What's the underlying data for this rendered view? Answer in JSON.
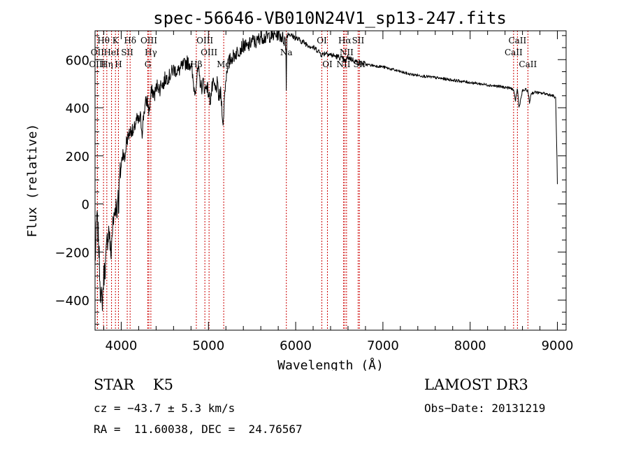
{
  "chart_data": {
    "type": "line",
    "title": "spec-56646-VB010N24V1_sp13-247.fits",
    "xlabel": "Wavelength (Å)",
    "ylabel": "Flux (relative)",
    "xlim": [
      3700,
      9100
    ],
    "ylim": [
      -525,
      720
    ],
    "xticks": [
      4000,
      5000,
      6000,
      7000,
      8000,
      9000
    ],
    "yticks": [
      -400,
      -200,
      0,
      200,
      400,
      600
    ],
    "line_color": "#000000",
    "marker_color": "#cc0000",
    "spectrum": {
      "x": [
        3700,
        3720,
        3740,
        3760,
        3780,
        3800,
        3820,
        3840,
        3860,
        3880,
        3900,
        3920,
        3940,
        3950,
        3960,
        3970,
        3980,
        4000,
        4020,
        4040,
        4060,
        4080,
        4100,
        4120,
        4140,
        4160,
        4180,
        4200,
        4220,
        4240,
        4260,
        4280,
        4300,
        4320,
        4340,
        4360,
        4380,
        4400,
        4420,
        4440,
        4460,
        4480,
        4500,
        4550,
        4600,
        4650,
        4700,
        4750,
        4800,
        4820,
        4840,
        4860,
        4880,
        4900,
        4920,
        4940,
        4960,
        4980,
        5000,
        5020,
        5040,
        5060,
        5080,
        5100,
        5120,
        5140,
        5160,
        5170,
        5175,
        5180,
        5190,
        5200,
        5220,
        5250,
        5300,
        5350,
        5400,
        5450,
        5500,
        5550,
        5600,
        5650,
        5700,
        5750,
        5800,
        5850,
        5880,
        5890,
        5893,
        5896,
        5900,
        5920,
        5950,
        6000,
        6050,
        6100,
        6150,
        6200,
        6250,
        6300,
        6350,
        6400,
        6450,
        6500,
        6550,
        6563,
        6580,
        6600,
        6650,
        6700,
        6750,
        6800,
        6900,
        7000,
        7100,
        7200,
        7300,
        7400,
        7500,
        7600,
        7700,
        7800,
        7900,
        8000,
        8100,
        8200,
        8300,
        8400,
        8480,
        8498,
        8520,
        8542,
        8560,
        8600,
        8640,
        8662,
        8680,
        8700,
        8750,
        8800,
        8850,
        8900,
        8950,
        8980,
        8995,
        9000
      ],
      "y": [
        -250,
        -50,
        -150,
        -350,
        -420,
        -300,
        -250,
        -150,
        -100,
        -220,
        -100,
        -50,
        10,
        -60,
        60,
        -20,
        100,
        160,
        220,
        180,
        260,
        280,
        300,
        310,
        290,
        330,
        350,
        340,
        360,
        300,
        380,
        420,
        430,
        380,
        460,
        470,
        450,
        480,
        500,
        470,
        510,
        490,
        520,
        530,
        560,
        550,
        570,
        590,
        580,
        520,
        470,
        500,
        560,
        520,
        480,
        510,
        470,
        500,
        460,
        430,
        480,
        500,
        470,
        500,
        440,
        460,
        380,
        300,
        380,
        420,
        480,
        520,
        580,
        600,
        620,
        640,
        660,
        650,
        680,
        670,
        700,
        690,
        700,
        700,
        710,
        690,
        680,
        620,
        440,
        620,
        700,
        710,
        700,
        690,
        680,
        670,
        660,
        650,
        640,
        620,
        630,
        620,
        615,
        610,
        600,
        590,
        600,
        610,
        600,
        590,
        585,
        580,
        575,
        570,
        560,
        550,
        540,
        535,
        530,
        525,
        520,
        515,
        510,
        505,
        500,
        495,
        490,
        485,
        480,
        470,
        430,
        480,
        400,
        470,
        475,
        470,
        420,
        460,
        465,
        460,
        460,
        455,
        450,
        440,
        200,
        80
      ]
    },
    "lines": [
      {
        "label": "Hθ",
        "wave": 3797,
        "row": 0
      },
      {
        "label": "OII",
        "wave": 3727,
        "row": 1
      },
      {
        "label": "OIII",
        "wave": 3727,
        "row": 2
      },
      {
        "label": "Hη",
        "wave": 3835,
        "row": 2
      },
      {
        "label": "K",
        "wave": 3934,
        "row": 0
      },
      {
        "label": "HeI",
        "wave": 3889,
        "row": 1
      },
      {
        "label": "H",
        "wave": 3968,
        "row": 2
      },
      {
        "label": "Hδ",
        "wave": 4102,
        "row": 0
      },
      {
        "label": "SII",
        "wave": 4069,
        "row": 1
      },
      {
        "label": "OIII",
        "wave": 4317,
        "row": 0
      },
      {
        "label": "Hγ",
        "wave": 4340,
        "row": 1
      },
      {
        "label": "G",
        "wave": 4305,
        "row": 2
      },
      {
        "label": "OIII",
        "wave": 4959,
        "row": 0
      },
      {
        "label": "OIII",
        "wave": 5007,
        "row": 1
      },
      {
        "label": "Hβ",
        "wave": 4861,
        "row": 2
      },
      {
        "label": "Mg",
        "wave": 5175,
        "row": 2
      },
      {
        "label": "Na",
        "wave": 5893,
        "row": 1
      },
      {
        "label": "OI",
        "wave": 6300,
        "row": 0
      },
      {
        "label": "OI",
        "wave": 6364,
        "row": 2
      },
      {
        "label": "Hα",
        "wave": 6563,
        "row": 0
      },
      {
        "label": "NII",
        "wave": 6583,
        "row": 1
      },
      {
        "label": "NII",
        "wave": 6548,
        "row": 2
      },
      {
        "label": "SII",
        "wave": 6716,
        "row": 0
      },
      {
        "label": "SII",
        "wave": 6731,
        "row": 2
      },
      {
        "label": "CaII",
        "wave": 8542,
        "row": 0
      },
      {
        "label": "CaII",
        "wave": 8498,
        "row": 1
      },
      {
        "label": "CaII",
        "wave": 8662,
        "row": 2
      }
    ]
  },
  "info": {
    "star_class": "STAR    K5",
    "survey": "LAMOST DR3",
    "cz": "cz = −43.7 ± 5.3 km/s",
    "obs_date": "Obs−Date: 20131219",
    "coords": "RA =  11.60038, DEC =  24.76567"
  }
}
